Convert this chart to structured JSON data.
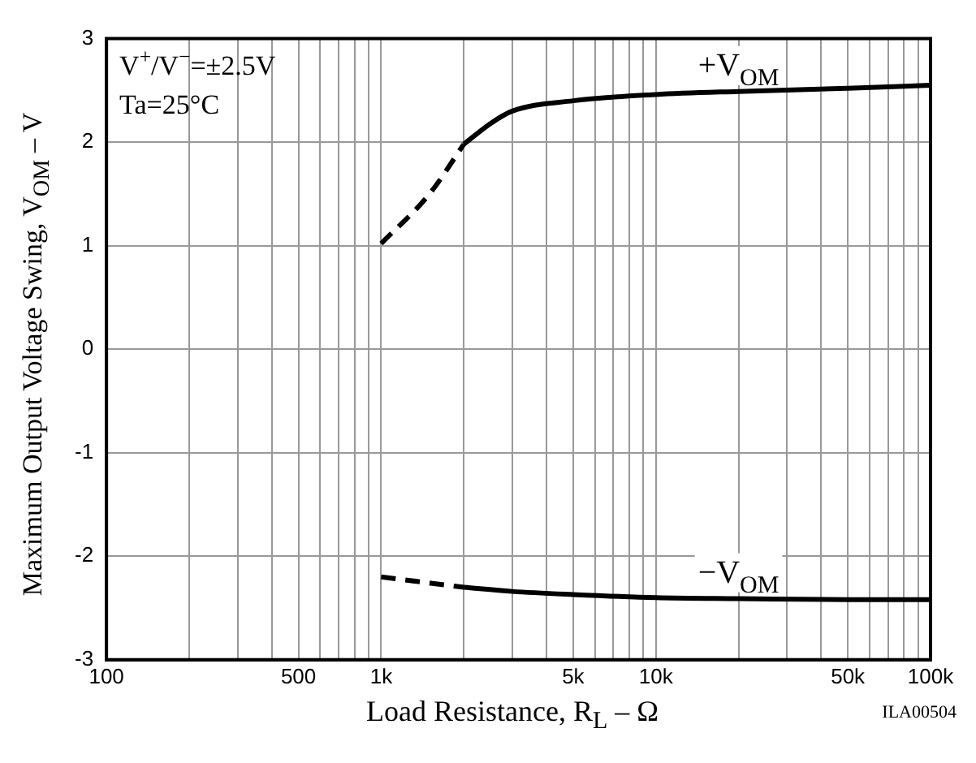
{
  "chart_data": {
    "type": "line",
    "xlabel": "Load Resistance, R$_{L}$ – Ω",
    "ylabel": "Maximum Output Voltage Swing, V$_{OM}$ – V",
    "annotations": [
      "V$^{+}$/V$^{−}$=±2.5V",
      "Ta=25°C",
      "ILA00504"
    ],
    "series": [
      {
        "color": "#000000",
        "line_style": "dashed",
        "x": [
          1000,
          1500,
          2000
        ],
        "values": [
          1.02,
          1.5,
          1.98
        ]
      },
      {
        "name": "+V$_{OM}$",
        "color": "#000000",
        "line_style": "solid",
        "x": [
          2000,
          2500,
          3000,
          5000,
          10000,
          20000,
          50000,
          100000
        ],
        "values": [
          1.98,
          2.18,
          2.3,
          2.4,
          2.46,
          2.49,
          2.52,
          2.55
        ]
      },
      {
        "color": "#000000",
        "line_style": "dashed",
        "x": [
          1000,
          2000
        ],
        "values": [
          -2.2,
          -2.3
        ]
      },
      {
        "name": "−V$_{OM}$",
        "color": "#000000",
        "line_style": "solid",
        "x": [
          2000,
          3000,
          5000,
          10000,
          20000,
          50000,
          100000
        ],
        "values": [
          -2.3,
          -2.34,
          -2.37,
          -2.4,
          -2.41,
          -2.42,
          -2.42
        ]
      }
    ],
    "log": "x",
    "xlim": [
      100,
      100000
    ],
    "ylim": [
      -3,
      3
    ],
    "xticks": [
      100,
      {
        "value": 200,
        "label": null
      },
      {
        "value": 300,
        "label": null
      },
      {
        "value": 400,
        "label": null
      },
      500,
      {
        "value": 600,
        "label": null
      },
      {
        "value": 700,
        "label": null
      },
      {
        "value": 800,
        "label": null
      },
      {
        "value": 900,
        "label": null
      },
      {
        "value": 1000,
        "label": "1k"
      },
      {
        "value": 2000,
        "label": null
      },
      {
        "value": 3000,
        "label": null
      },
      {
        "value": 4000,
        "label": null
      },
      {
        "value": 5000,
        "label": "5k"
      },
      {
        "value": 6000,
        "label": null
      },
      {
        "value": 7000,
        "label": null
      },
      {
        "value": 8000,
        "label": null
      },
      {
        "value": 9000,
        "label": null
      },
      {
        "value": 10000,
        "label": "10k"
      },
      {
        "value": 20000,
        "label": null
      },
      {
        "value": 30000,
        "label": null
      },
      {
        "value": 40000,
        "label": null
      },
      {
        "value": 50000,
        "label": "50k"
      },
      {
        "value": 60000,
        "label": null
      },
      {
        "value": 70000,
        "label": null
      },
      {
        "value": 80000,
        "label": null
      },
      {
        "value": 90000,
        "label": null
      },
      {
        "value": 100000,
        "label": "100k"
      }
    ],
    "yticks": [
      -3,
      -2,
      -1,
      0,
      1,
      2,
      3
    ],
    "grid": true,
    "legend": false,
    "marker": "none"
  }
}
